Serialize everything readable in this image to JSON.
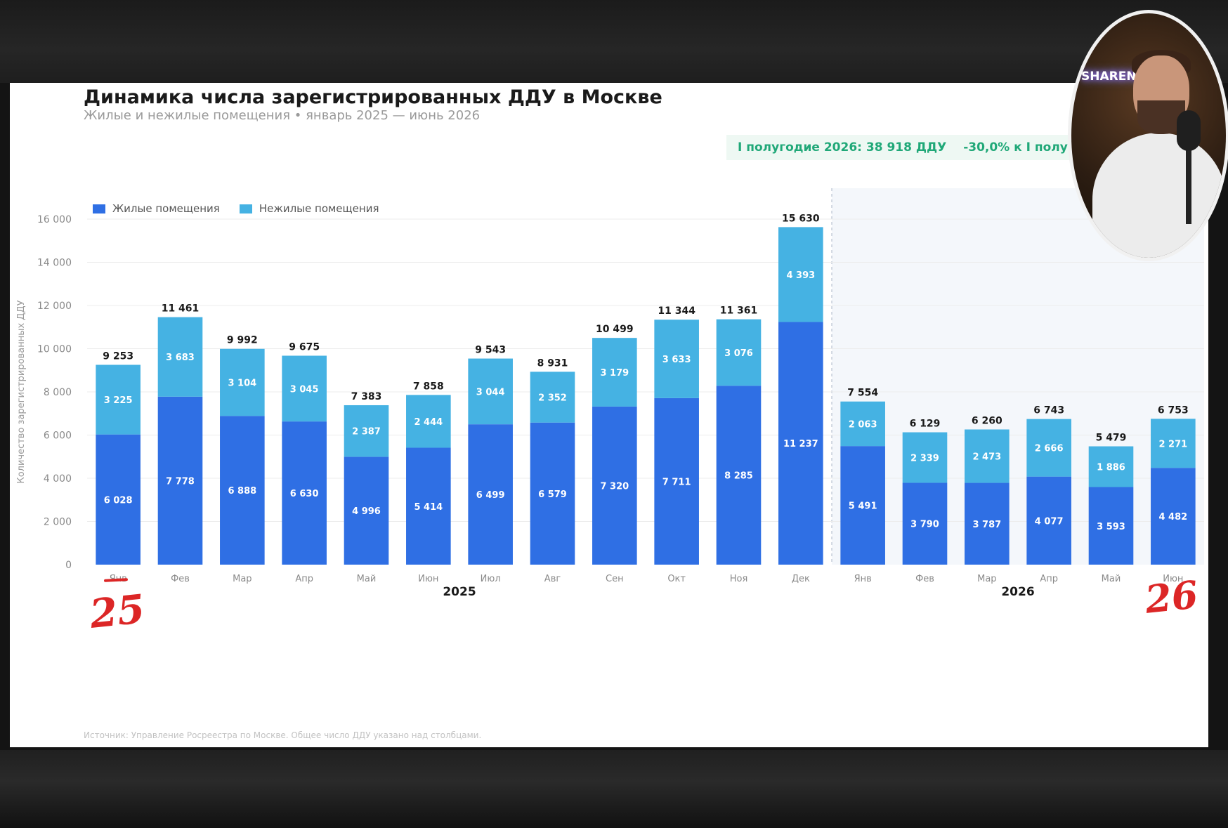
{
  "chart_data": {
    "type": "bar",
    "stacked": true,
    "title": "Динамика числа зарегистрированных ДДУ в Москве",
    "subtitle": "Жилые и нежилые помещения • январь 2025 — июнь 2026",
    "ylabel": "Количество зарегистрированных ДДУ",
    "ylim": [
      0,
      16000
    ],
    "yticks": [
      0,
      2000,
      4000,
      6000,
      8000,
      10000,
      12000,
      14000,
      16000
    ],
    "ytick_labels": [
      "0",
      "2 000",
      "4 000",
      "6 000",
      "8 000",
      "10 000",
      "12 000",
      "14 000",
      "16 000"
    ],
    "categories": [
      "Янв",
      "Фев",
      "Мар",
      "Апр",
      "Май",
      "Июн",
      "Июл",
      "Авг",
      "Сен",
      "Окт",
      "Ноя",
      "Дек",
      "Янв",
      "Фев",
      "Мар",
      "Апр",
      "Май",
      "Июн"
    ],
    "year_groups": [
      {
        "label": "2025",
        "from": 0,
        "to": 11
      },
      {
        "label": "2026",
        "from": 12,
        "to": 17
      }
    ],
    "series": [
      {
        "name": "Жилые помещения",
        "color": "#2f6fe4",
        "values": [
          6028,
          7778,
          6888,
          6630,
          4996,
          5414,
          6499,
          6579,
          7320,
          7711,
          8285,
          11237,
          5491,
          3790,
          3787,
          4077,
          3593,
          4482
        ],
        "labels": [
          "6 028",
          "7 778",
          "6 888",
          "6 630",
          "4 996",
          "5 414",
          "6 499",
          "6 579",
          "7 320",
          "7 711",
          "8 285",
          "11 237",
          "5 491",
          "3 790",
          "3 787",
          "4 077",
          "3 593",
          "4 482"
        ]
      },
      {
        "name": "Нежилые помещения",
        "color": "#45b2e3",
        "values": [
          3225,
          3683,
          3104,
          3045,
          2387,
          2444,
          3044,
          2352,
          3179,
          3633,
          3076,
          4393,
          2063,
          2339,
          2473,
          2666,
          1886,
          2271
        ],
        "labels": [
          "3 225",
          "3 683",
          "3 104",
          "3 045",
          "2 387",
          "2 444",
          "3 044",
          "2 352",
          "3 179",
          "3 633",
          "3 076",
          "4 393",
          "2 063",
          "2 339",
          "2 473",
          "2 666",
          "1 886",
          "2 271"
        ]
      }
    ],
    "totals": [
      9253,
      11461,
      9992,
      9675,
      7383,
      7858,
      9543,
      8931,
      10499,
      11344,
      11361,
      15630,
      7554,
      6129,
      6260,
      6743,
      5479,
      6753
    ],
    "total_labels": [
      "9 253",
      "11 461",
      "9 992",
      "9 675",
      "7 383",
      "7 858",
      "9 543",
      "8 931",
      "10 499",
      "11 344",
      "11 361",
      "15 630",
      "7 554",
      "6 129",
      "6 260",
      "6 743",
      "5 479",
      "6 753"
    ],
    "legend_position": "top-left",
    "grid": true,
    "highlight_from_index": 12
  },
  "summary": {
    "total": "I полугодие 2026: 38 918 ДДУ",
    "change": "-30,0% к I полу"
  },
  "legend": {
    "residential": "Жилые помещения",
    "nonresidential": "Нежилые помещения"
  },
  "source": "Источник: Управление Росреестра по Москве. Общее число ДДУ указано над столбцами.",
  "annotations": {
    "left": "25",
    "right": "26"
  },
  "webcam": {
    "sign": "SHARENT"
  },
  "colors": {
    "residential": "#2f6fe4",
    "nonresidential": "#45b2e3",
    "summary_text": "#20a878",
    "annotation": "#dc2626"
  }
}
